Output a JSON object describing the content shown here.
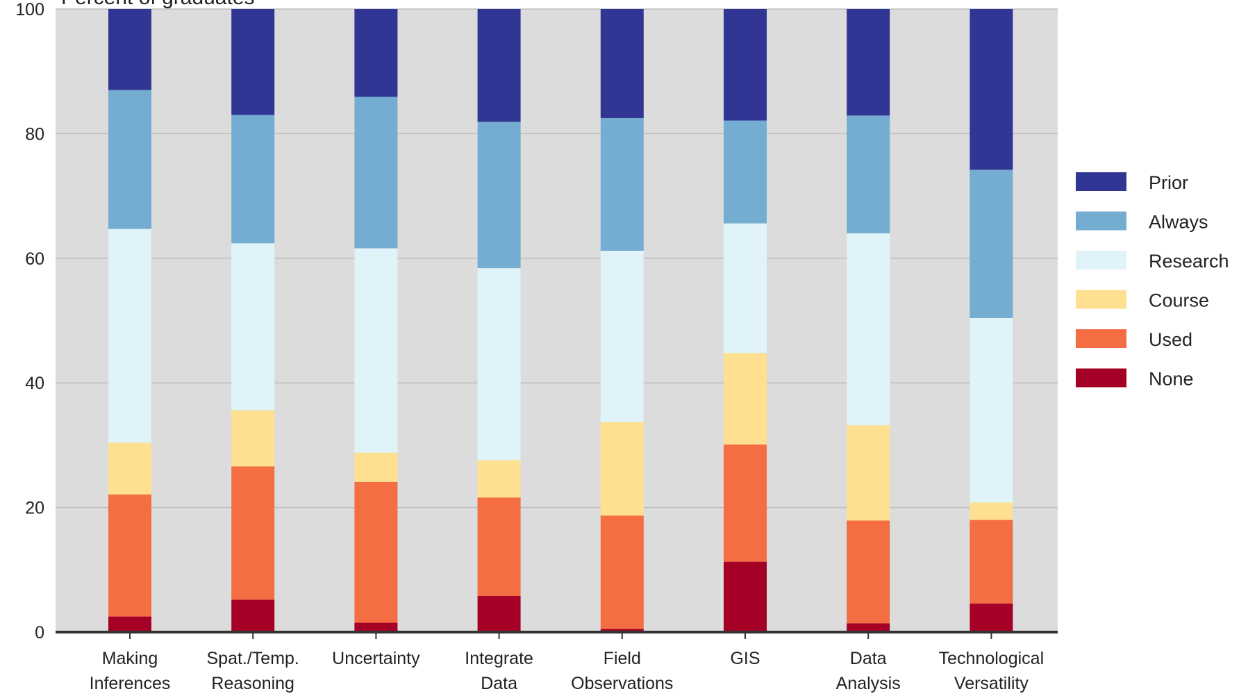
{
  "chart_data": {
    "type": "bar",
    "stacked": true,
    "title": "",
    "ylabel": "Percent of graduates",
    "xlabel": "",
    "ylim": [
      0,
      100
    ],
    "yticks": [
      0,
      20,
      40,
      60,
      80,
      100
    ],
    "grid": true,
    "legend_position": "right",
    "categories": [
      [
        "Making",
        "Inferences"
      ],
      [
        "Spat./Temp.",
        "Reasoning"
      ],
      [
        "Uncertainty"
      ],
      [
        "Integrate",
        "Data"
      ],
      [
        "Field",
        "Observations"
      ],
      [
        "GIS"
      ],
      [
        "Data",
        "Analysis"
      ],
      [
        "Technological",
        "Versatility"
      ]
    ],
    "series": [
      {
        "name": "None",
        "color": "#a50026",
        "values": [
          2.5,
          5.2,
          1.5,
          5.8,
          0.5,
          11.3,
          1.4,
          4.6
        ]
      },
      {
        "name": "Used",
        "color": "#f46d43",
        "values": [
          19.6,
          21.4,
          22.6,
          15.8,
          18.2,
          18.8,
          16.5,
          13.4
        ]
      },
      {
        "name": "Course",
        "color": "#fee090",
        "values": [
          8.3,
          9.0,
          4.7,
          6.0,
          15.0,
          14.7,
          15.3,
          2.8
        ]
      },
      {
        "name": "Research",
        "color": "#e0f3f8",
        "values": [
          34.3,
          26.8,
          32.8,
          30.8,
          27.5,
          20.8,
          30.8,
          29.6
        ]
      },
      {
        "name": "Always",
        "color": "#74add1",
        "values": [
          22.3,
          20.6,
          24.3,
          23.5,
          21.3,
          16.5,
          18.9,
          23.8
        ]
      },
      {
        "name": "Prior",
        "color": "#313695",
        "values": [
          13.0,
          17.0,
          14.1,
          18.1,
          17.5,
          17.9,
          17.1,
          25.8
        ]
      }
    ]
  }
}
